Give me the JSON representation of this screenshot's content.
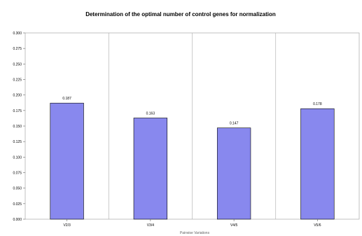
{
  "chart_data": {
    "type": "bar",
    "title": "Determination of the optimal number of control genes for normalization",
    "xlabel": "Pairwise Variations",
    "ylabel": "",
    "categories": [
      "V2/3",
      "V3/4",
      "V4/5",
      "V5/6"
    ],
    "values": [
      0.187,
      0.163,
      0.147,
      0.178
    ],
    "data_labels": [
      "0.187",
      "0.163",
      "0.147",
      "0.178"
    ],
    "ylim": [
      0,
      0.3
    ],
    "yticks": [
      0,
      0.025,
      0.05,
      0.075,
      0.1,
      0.125,
      0.15,
      0.175,
      0.2,
      0.225,
      0.25,
      0.275,
      0.3
    ],
    "ytick_labels": [
      "0.000",
      "0.025",
      "0.050",
      "0.075",
      "0.100",
      "0.125",
      "0.150",
      "0.175",
      "0.200",
      "0.225",
      "0.250",
      "0.275",
      "0.300"
    ],
    "grid": "vertical category separators",
    "legend": "none",
    "bar_color": "#8888ee",
    "bar_stroke": "#000000"
  }
}
